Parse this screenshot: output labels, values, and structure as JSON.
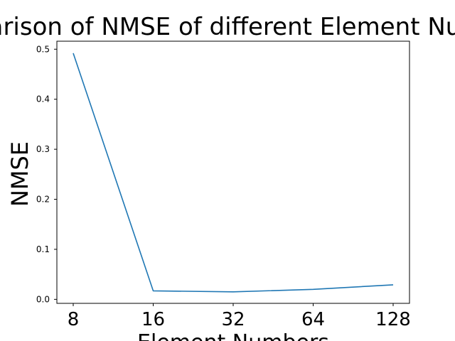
{
  "chart_data": {
    "type": "line",
    "title": "Comparison of NMSE of different Element Numbers",
    "xlabel": "Element Numbers",
    "ylabel": "NMSE",
    "categories": [
      "8",
      "16",
      "32",
      "64",
      "128"
    ],
    "series": [
      {
        "name": "NMSE",
        "color": "#1f77b4",
        "values": [
          0.492,
          0.017,
          0.015,
          0.02,
          0.029
        ]
      }
    ],
    "yticks": [
      "0.0",
      "0.1",
      "0.2",
      "0.3",
      "0.4",
      "0.5"
    ],
    "ylim": [
      -0.008,
      0.516
    ],
    "grid": false,
    "legend": false
  }
}
